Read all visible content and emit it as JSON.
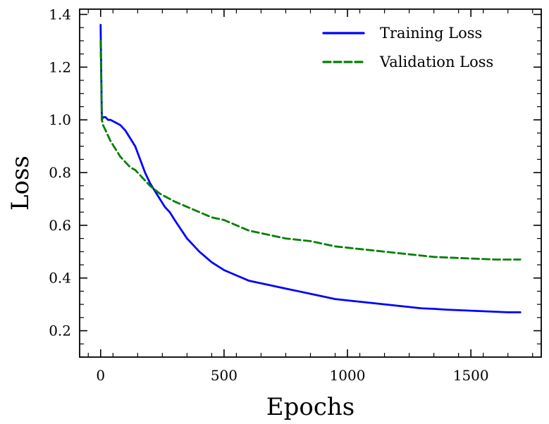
{
  "chart_data": {
    "type": "line",
    "title": "",
    "xlabel": "Epochs",
    "ylabel": "Loss",
    "xlim": [
      -85,
      1785
    ],
    "ylim": [
      0.1,
      1.42
    ],
    "xticks": [
      0,
      500,
      1000,
      1500
    ],
    "yticks": [
      0.2,
      0.4,
      0.6,
      0.8,
      1.0,
      1.2,
      1.4
    ],
    "xtick_labels": [
      "0",
      "500",
      "1000",
      "1500"
    ],
    "ytick_labels": [
      "0.2",
      "0.4",
      "0.6",
      "0.8",
      "1.0",
      "1.2",
      "1.4"
    ],
    "grid": false,
    "legend_position": "top-right",
    "x": [
      0,
      5,
      10,
      20,
      30,
      40,
      60,
      80,
      100,
      120,
      140,
      160,
      180,
      200,
      220,
      240,
      260,
      280,
      300,
      350,
      400,
      450,
      500,
      550,
      600,
      650,
      700,
      750,
      800,
      850,
      900,
      950,
      1000,
      1050,
      1100,
      1150,
      1200,
      1250,
      1300,
      1350,
      1400,
      1450,
      1500,
      1550,
      1600,
      1650,
      1700
    ],
    "series": [
      {
        "name": "Training Loss",
        "color": "#0000ff",
        "style": "solid",
        "values": [
          1.36,
          1.0,
          1.01,
          1.01,
          1.0,
          1.0,
          0.99,
          0.98,
          0.96,
          0.93,
          0.9,
          0.85,
          0.8,
          0.76,
          0.73,
          0.7,
          0.67,
          0.65,
          0.62,
          0.55,
          0.5,
          0.46,
          0.43,
          0.41,
          0.39,
          0.38,
          0.37,
          0.36,
          0.35,
          0.34,
          0.33,
          0.32,
          0.315,
          0.31,
          0.305,
          0.3,
          0.295,
          0.29,
          0.285,
          0.283,
          0.28,
          0.278,
          0.276,
          0.274,
          0.272,
          0.27,
          0.27
        ]
      },
      {
        "name": "Validation Loss",
        "color": "#008000",
        "style": "dashed",
        "values": [
          1.3,
          1.0,
          0.98,
          0.96,
          0.94,
          0.92,
          0.89,
          0.86,
          0.84,
          0.82,
          0.81,
          0.79,
          0.77,
          0.75,
          0.735,
          0.72,
          0.71,
          0.7,
          0.69,
          0.67,
          0.65,
          0.63,
          0.62,
          0.6,
          0.58,
          0.57,
          0.56,
          0.55,
          0.545,
          0.54,
          0.53,
          0.52,
          0.515,
          0.51,
          0.505,
          0.5,
          0.495,
          0.49,
          0.485,
          0.48,
          0.478,
          0.476,
          0.474,
          0.472,
          0.47,
          0.47,
          0.47
        ]
      }
    ]
  }
}
